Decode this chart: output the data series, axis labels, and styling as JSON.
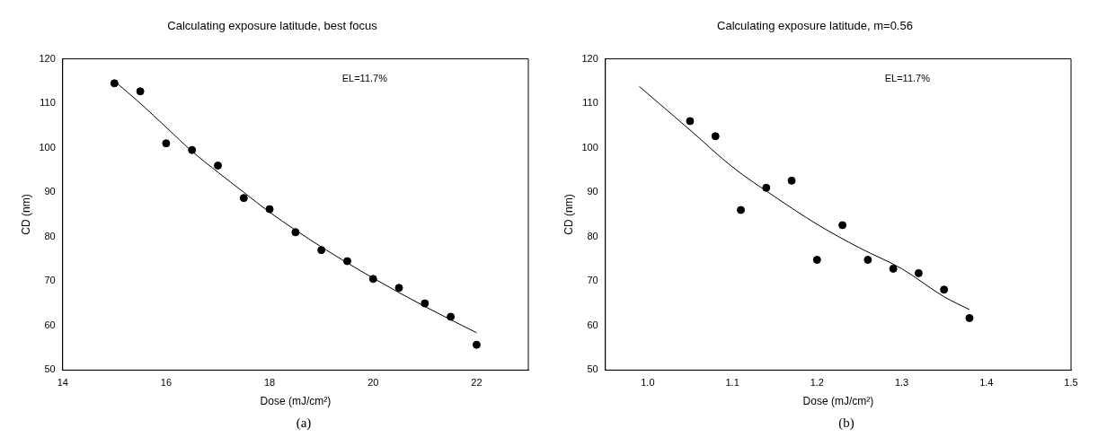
{
  "chart_data": [
    {
      "type": "scatter",
      "title": "Calculating exposure latitude, best focus",
      "xlabel": "Dose (mJ/cm²)",
      "ylabel": "CD (nm)",
      "annotations": [
        "EL=11.7%",
        "(a)"
      ],
      "xlim": [
        14,
        23
      ],
      "xticks": [
        14,
        16,
        18,
        20,
        22
      ],
      "ylim": [
        50,
        120
      ],
      "yticks": [
        50,
        60,
        70,
        80,
        90,
        100,
        110,
        120
      ],
      "grid": false,
      "legend": false,
      "series": [
        {
          "type": "scatter",
          "color": "#000000",
          "marker": "circle",
          "x": [
            15,
            15.5,
            16,
            16.5,
            17,
            17.5,
            18,
            18.5,
            19,
            19.5,
            20,
            20.5,
            21,
            21.5,
            22
          ],
          "values": [
            114.5,
            112.7,
            101,
            99.5,
            96,
            88.7,
            86.2,
            81,
            77,
            74.5,
            70.5,
            68.5,
            65,
            62,
            55.7
          ]
        },
        {
          "type": "line",
          "color": "#000000",
          "marker": "none",
          "line_style": "solid",
          "x": [
            15,
            15.5,
            16,
            16.5,
            17,
            17.5,
            18,
            19,
            20,
            21,
            22
          ],
          "values": [
            115,
            110,
            104.6,
            99.2,
            94.5,
            90,
            85.5,
            77.7,
            70.7,
            64.3,
            58.4
          ]
        }
      ]
    },
    {
      "type": "scatter",
      "title": "Calculating exposure latitude, m=0.56",
      "xlabel": "Dose (mJ/cm²)",
      "ylabel": "CD (nm)",
      "annotations": [
        "EL=11.7%",
        "(b)"
      ],
      "xlim": [
        0.95,
        1.5
      ],
      "xticks": [
        {
          "value": 1.0,
          "label": "1.0"
        },
        1.1,
        1.2,
        1.3,
        1.4,
        {
          "value": 1.5,
          "label": "1.5"
        }
      ],
      "ylim": [
        50,
        120
      ],
      "yticks": [
        50,
        60,
        70,
        80,
        90,
        100,
        110,
        120
      ],
      "grid": false,
      "legend": false,
      "series": [
        {
          "type": "scatter",
          "color": "#000000",
          "marker": "circle",
          "x": [
            1.05,
            1.08,
            1.11,
            1.14,
            1.17,
            1.2,
            1.23,
            1.26,
            1.29,
            1.32,
            1.35,
            1.38
          ],
          "values": [
            106,
            102.6,
            86,
            91,
            92.6,
            74.8,
            82.6,
            74.8,
            72.8,
            71.8,
            68.1,
            61.7
          ]
        },
        {
          "type": "line",
          "color": "#000000",
          "marker": "none",
          "line_style": "solid",
          "x": [
            0.99,
            1.05,
            1.1,
            1.15,
            1.2,
            1.25,
            1.3,
            1.35,
            1.38
          ],
          "values": [
            113.8,
            104,
            95.7,
            89,
            82.8,
            77.5,
            72.8,
            66.5,
            63.6
          ]
        }
      ]
    }
  ]
}
